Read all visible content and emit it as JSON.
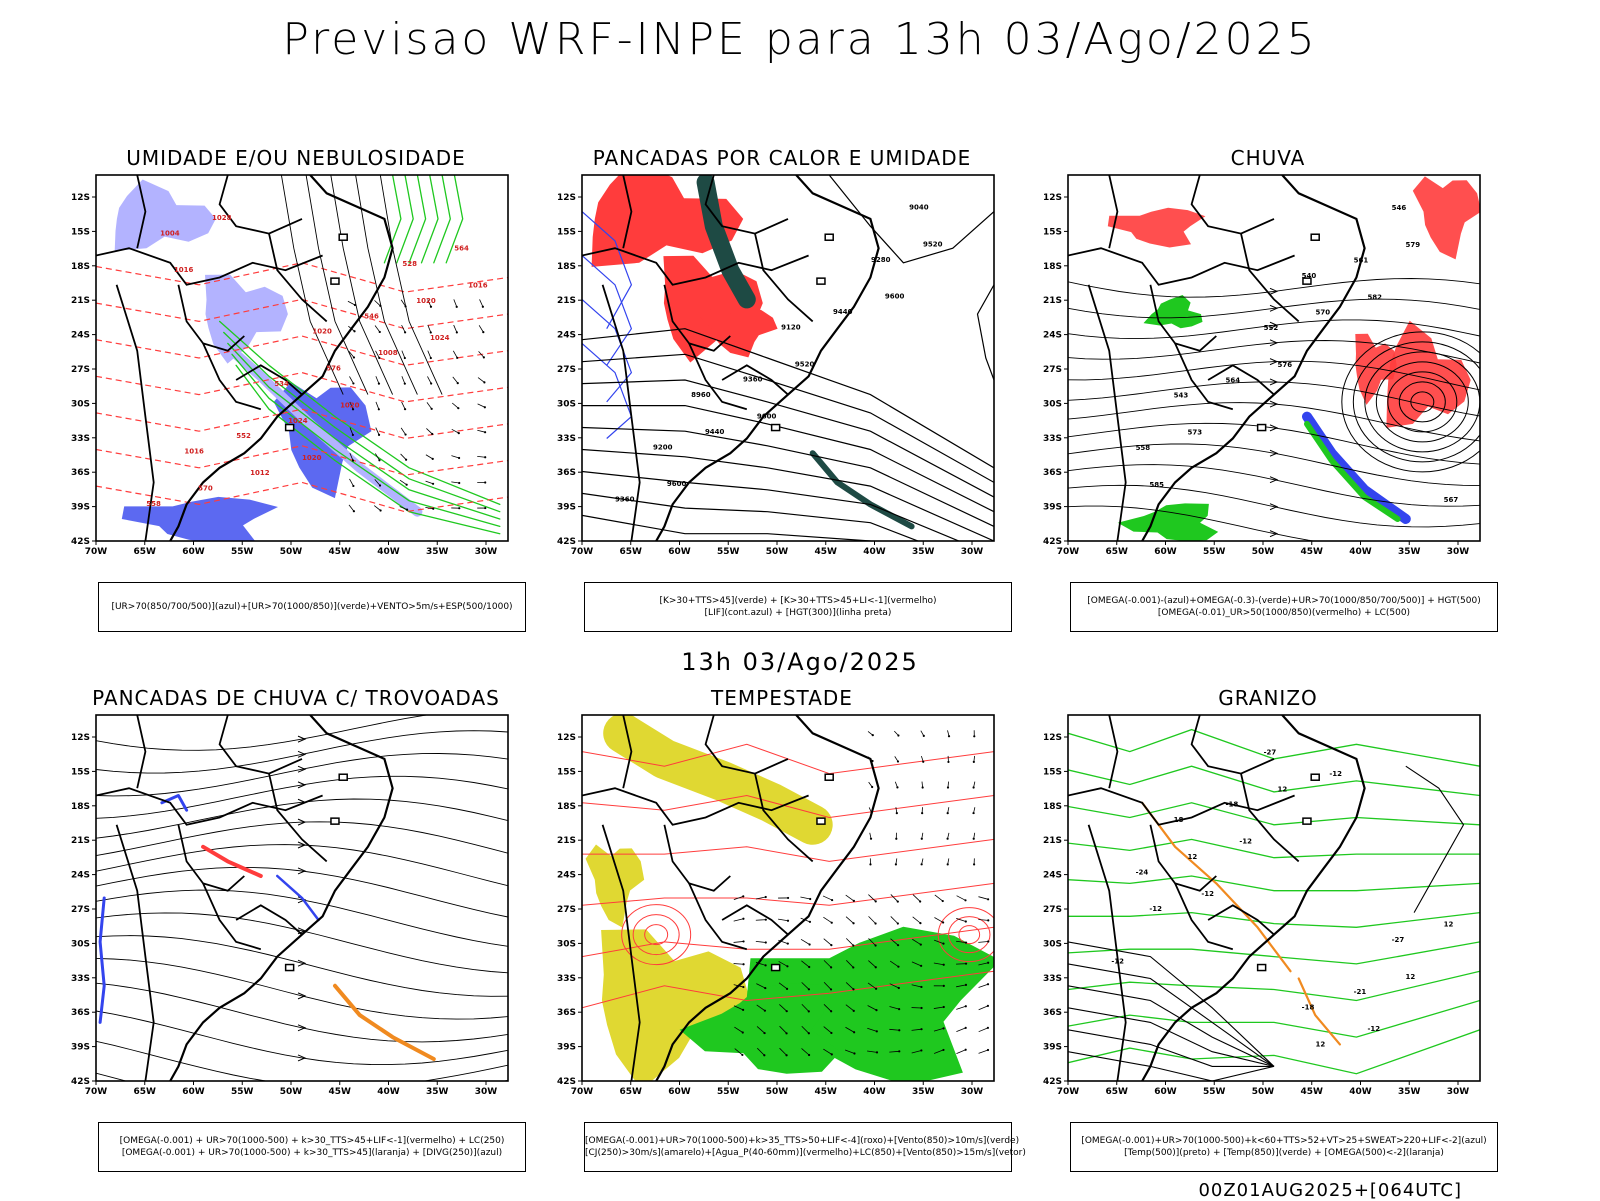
{
  "header": {
    "title": "Previsao WRF-INPE  para 13h 03/Ago/2025"
  },
  "mid_title": "13h 03/Ago/2025",
  "footer": "00Z01AUG2025+[064UTC]",
  "axes": {
    "lat_labels": [
      "12S",
      "15S",
      "18S",
      "21S",
      "24S",
      "27S",
      "30S",
      "33S",
      "36S",
      "39S",
      "42S"
    ],
    "lon_labels": [
      "70W",
      "65W",
      "60W",
      "55W",
      "50W",
      "45W",
      "40W",
      "35W",
      "30W"
    ]
  },
  "colors": {
    "green": "#1fc81f",
    "red": "#ff3c3c",
    "blue": "#3344ee",
    "lavender": "#b3b3ff",
    "darkteal": "#1e4a44",
    "yellow": "#e0d832",
    "orange": "#f08a20",
    "black": "#000000"
  },
  "panels": [
    {
      "id": "umidade",
      "title": "UMIDADE E/OU NEBULOSIDADE",
      "legend": [
        "[UR>70(850/700/500)](azul)+[UR>70(1000/850)](verde)+VENTO>5m/s+ESP(500/1000)"
      ],
      "labels": [
        "1016",
        "1020",
        "1024",
        "1028",
        "1020",
        "1016",
        "1012",
        "1008",
        "1004",
        "1024",
        "1020",
        "570",
        "576",
        "564",
        "552",
        "546",
        "558",
        "534",
        "528",
        "1016",
        "1020"
      ]
    },
    {
      "id": "pancadas_calor",
      "title": "PANCADAS POR CALOR E UMIDADE",
      "legend": [
        "[K>30+TTS>45](verde) + [K>30+TTS>45+LI<-1](vermelho)",
        "[LIF](cont.azul) + [HGT(300)](linha preta)"
      ],
      "labels": [
        "9600",
        "9600",
        "9600",
        "9520",
        "9520",
        "9440",
        "9440",
        "9360",
        "9360",
        "9280",
        "9200",
        "9120",
        "9040",
        "8960"
      ]
    },
    {
      "id": "chuva",
      "title": "CHUVA",
      "legend": [
        "[OMEGA(-0.001)-(azul)+OMEGA(-0.3)-(verde)+UR>70(1000/850/700/500)] + HGT(500)",
        "[OMEGA(-0.01)_UR>50(1000/850)(vermelho) + LC(500)"
      ],
      "labels": [
        "582",
        "585",
        "576",
        "579",
        "573",
        "570",
        "567",
        "564",
        "561",
        "558",
        "552",
        "546",
        "543",
        "540"
      ]
    },
    {
      "id": "pancadas_trovoadas",
      "title": "PANCADAS DE CHUVA C/ TROVOADAS",
      "legend": [
        "[OMEGA(-0.001) + UR>70(1000-500) + k>30_TTS>45+LIF<-1](vermelho) + LC(250)",
        "[OMEGA(-0.001) + UR>70(1000-500) + k>30_TTS>45](laranja) + [DIVG(250)](azul)"
      ],
      "labels": []
    },
    {
      "id": "tempestade",
      "title": "TEMPESTADE",
      "legend": [
        "[OMEGA(-0.001)+UR>70(1000-500)+k>35_TTS>50+LIF<-4](roxo)+[Vento(850)>10m/s](verde)",
        "[CJ(250)>30m/s](amarelo)+[Agua_P(40-60mm)](vermelho)+LC(850)+[Vento(850)>15m/s](vetor)"
      ],
      "labels": []
    },
    {
      "id": "granizo",
      "title": "GRANIZO",
      "legend": [
        "[OMEGA(-0.001)+UR>70(1000-500)+k<60+TTS>52+VT>25+SWEAT>220+LIF<-2](azul)",
        "[Temp(500)](preto) + [Temp(850)](verde) + [OMEGA(500)<-2](laranja)"
      ],
      "labels": [
        "-12",
        "-12",
        "-12",
        "-12",
        "-12",
        "-12",
        "12",
        "12",
        "12",
        "12",
        "12",
        "-18",
        "-21",
        "-24",
        "-27",
        "-27",
        "18",
        "-18"
      ]
    }
  ]
}
